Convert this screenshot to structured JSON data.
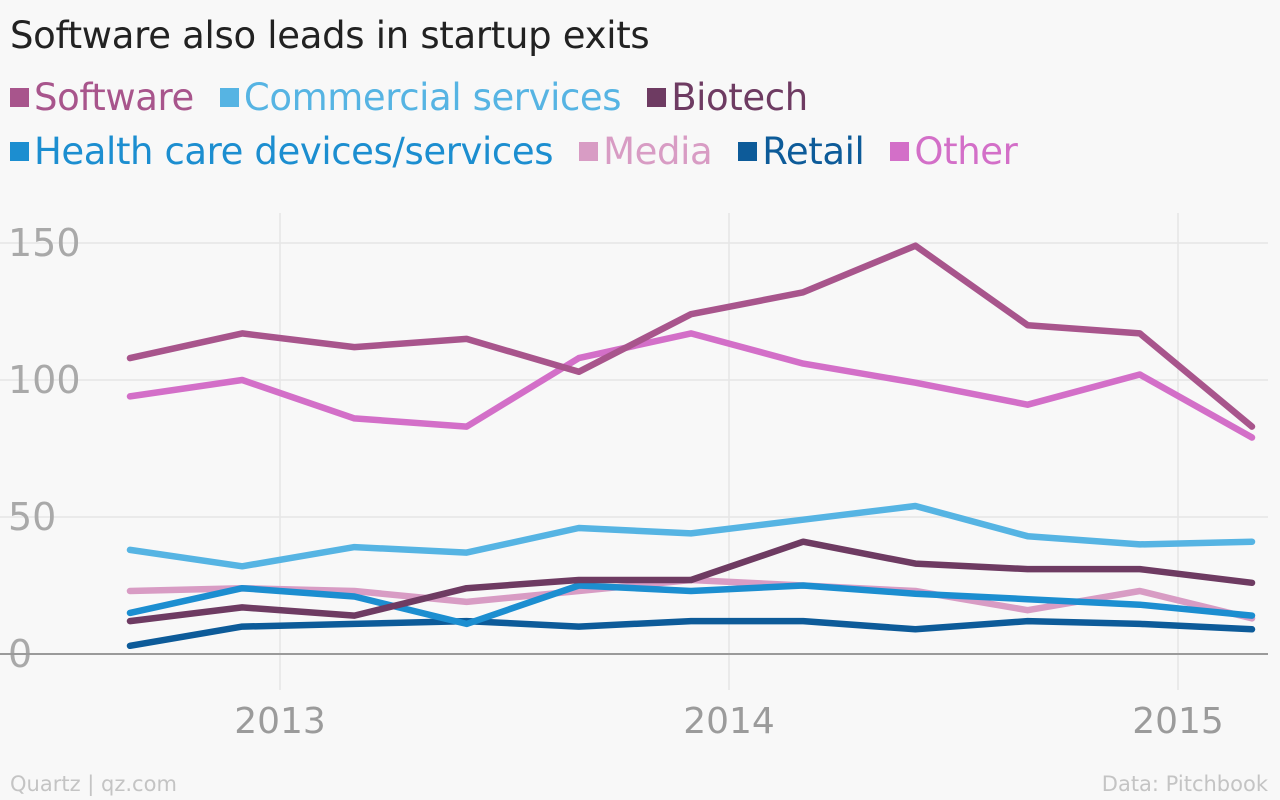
{
  "chart_data": {
    "type": "line",
    "title": "Software also leads in startup exits",
    "xlabel": "",
    "ylabel": "",
    "x": [
      "2012-Q3",
      "2012-Q4",
      "2013-Q1",
      "2013-Q2",
      "2013-Q3",
      "2013-Q4",
      "2014-Q1",
      "2014-Q2",
      "2014-Q3",
      "2014-Q4",
      "2015-Q1"
    ],
    "x_ticks": [
      "2013",
      "2014",
      "2015"
    ],
    "y_ticks": [
      0,
      50,
      100,
      150
    ],
    "ylim": [
      0,
      160
    ],
    "grid": true,
    "legend_position": "top",
    "series": [
      {
        "name": "Software",
        "color": "#a8558c",
        "values": [
          108,
          117,
          112,
          115,
          103,
          124,
          132,
          149,
          120,
          117,
          83
        ]
      },
      {
        "name": "Commercial services",
        "color": "#56b4e3",
        "values": [
          38,
          32,
          39,
          37,
          46,
          44,
          49,
          54,
          43,
          40,
          41
        ]
      },
      {
        "name": "Biotech",
        "color": "#6e3b62",
        "values": [
          12,
          17,
          14,
          24,
          27,
          27,
          41,
          33,
          31,
          31,
          26
        ]
      },
      {
        "name": "Health care devices/services",
        "color": "#1c8ed0",
        "values": [
          15,
          24,
          21,
          11,
          25,
          23,
          25,
          22,
          20,
          18,
          14
        ]
      },
      {
        "name": "Media",
        "color": "#d89cc4",
        "values": [
          23,
          24,
          23,
          19,
          23,
          27,
          25,
          23,
          16,
          23,
          13
        ]
      },
      {
        "name": "Retail",
        "color": "#0d5b99",
        "values": [
          3,
          10,
          11,
          12,
          10,
          12,
          12,
          9,
          12,
          11,
          9
        ]
      },
      {
        "name": "Other",
        "color": "#d36fc8",
        "values": [
          94,
          100,
          86,
          83,
          108,
          117,
          106,
          99,
          91,
          102,
          79
        ]
      }
    ]
  },
  "footer": {
    "source_left": "Quartz | qz.com",
    "source_right": "Data: Pitchbook"
  }
}
